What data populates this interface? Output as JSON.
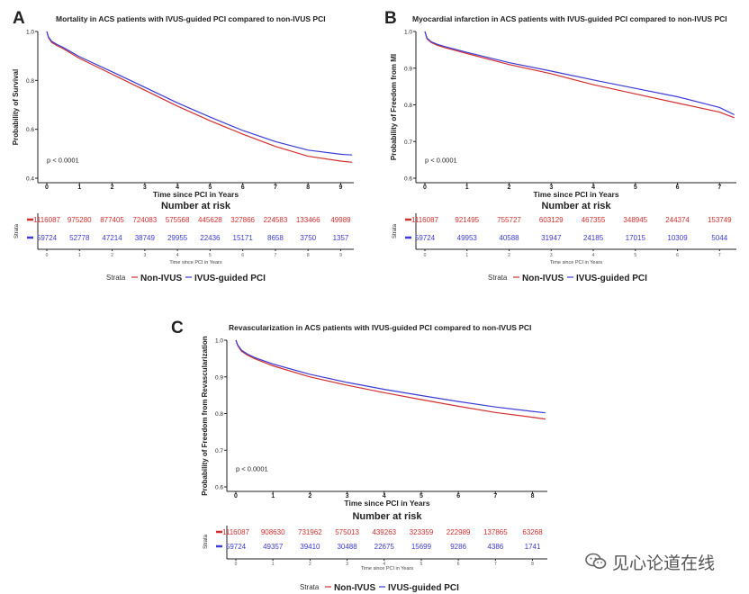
{
  "colors": {
    "non_ivus": "#d32f2f",
    "ivus": "#3b3bd6",
    "axis": "#222222"
  },
  "watermark": {
    "text": "见心论道在线",
    "icon": "wechat-icon"
  },
  "chart_data": [
    {
      "label": "A",
      "type": "line",
      "title": "Mortality in ACS patients with IVUS-guided PCI compared to non-IVUS PCI",
      "xlabel": "Time since PCI in Years",
      "ylabel": "Probability of Survival",
      "xlim": [
        0,
        9.4
      ],
      "ylim": [
        0.4,
        1.0
      ],
      "xticks": [
        0,
        1,
        2,
        3,
        4,
        5,
        6,
        7,
        8,
        9
      ],
      "yticks": [
        0.4,
        0.6,
        0.8,
        1.0
      ],
      "ytick_labels": [
        "0.4",
        "0.6",
        "0.8",
        "1.0"
      ],
      "pvalue": "p < 0.0001",
      "series": [
        {
          "name": "Non-IVUS",
          "x": [
            0,
            0.05,
            0.15,
            0.3,
            0.5,
            1,
            2,
            3,
            4,
            5,
            6,
            7,
            8,
            9,
            9.35
          ],
          "values": [
            1.0,
            0.975,
            0.955,
            0.943,
            0.93,
            0.89,
            0.825,
            0.76,
            0.695,
            0.635,
            0.58,
            0.53,
            0.49,
            0.47,
            0.465
          ]
        },
        {
          "name": "IVUS-guided PCI",
          "x": [
            0,
            0.05,
            0.15,
            0.3,
            0.5,
            1,
            2,
            3,
            4,
            5,
            6,
            7,
            8,
            9,
            9.35
          ],
          "values": [
            1.0,
            0.978,
            0.96,
            0.948,
            0.935,
            0.897,
            0.835,
            0.772,
            0.708,
            0.65,
            0.595,
            0.55,
            0.515,
            0.498,
            0.495
          ]
        }
      ],
      "risk_table": {
        "title": "Number at risk",
        "strata_label": "Strata",
        "xlabel": "Time since PCI in Years",
        "xticks": [
          0,
          1,
          2,
          3,
          4,
          5,
          6,
          7,
          8,
          9
        ],
        "rows": [
          {
            "name": "Non-IVUS",
            "values": [
              "1116087",
              "975280",
              "877405",
              "724083",
              "575568",
              "445628",
              "327866",
              "224583",
              "133466",
              "49989"
            ]
          },
          {
            "name": "IVUS-guided PCI",
            "values": [
              "59724",
              "52778",
              "47214",
              "38749",
              "29955",
              "22436",
              "15171",
              "8658",
              "3750",
              "1357"
            ]
          }
        ]
      },
      "legend": {
        "strata_label": "Strata",
        "entries": [
          "Non-IVUS",
          "IVUS-guided PCI"
        ],
        "position": "bottom"
      }
    },
    {
      "label": "B",
      "type": "line",
      "title": "Myocardial infarction in ACS patients with IVUS-guided PCI compared to non-IVUS PCI",
      "xlabel": "Time since PCI in Years",
      "ylabel": "Probability of Freedom from MI",
      "xlim": [
        0,
        7.4
      ],
      "ylim": [
        0.6,
        1.0
      ],
      "xticks": [
        0,
        1,
        2,
        3,
        4,
        5,
        6,
        7
      ],
      "yticks": [
        0.6,
        0.7,
        0.8,
        0.9,
        1.0
      ],
      "ytick_labels": [
        "0.6",
        "0.7",
        "0.8",
        "0.9",
        "1.0"
      ],
      "pvalue": "p < 0.0001",
      "series": [
        {
          "name": "Non-IVUS",
          "x": [
            0,
            0.05,
            0.15,
            0.3,
            0.5,
            1,
            2,
            3,
            4,
            5,
            6,
            7,
            7.35
          ],
          "values": [
            1.0,
            0.98,
            0.97,
            0.962,
            0.955,
            0.94,
            0.91,
            0.885,
            0.855,
            0.83,
            0.805,
            0.78,
            0.765
          ]
        },
        {
          "name": "IVUS-guided PCI",
          "x": [
            0,
            0.05,
            0.15,
            0.3,
            0.5,
            1,
            2,
            3,
            4,
            5,
            6,
            7,
            7.35
          ],
          "values": [
            1.0,
            0.982,
            0.972,
            0.965,
            0.958,
            0.943,
            0.915,
            0.892,
            0.868,
            0.845,
            0.822,
            0.793,
            0.773
          ]
        }
      ],
      "risk_table": {
        "title": "Number at risk",
        "strata_label": "Strata",
        "xlabel": "Time since PCI in Years",
        "xticks": [
          0,
          1,
          2,
          3,
          4,
          5,
          6,
          7
        ],
        "rows": [
          {
            "name": "Non-IVUS",
            "values": [
              "1116087",
              "921495",
              "755727",
              "603129",
              "467355",
              "348945",
              "244374",
              "153749"
            ]
          },
          {
            "name": "IVUS-guided PCI",
            "values": [
              "59724",
              "49953",
              "40588",
              "31947",
              "24185",
              "17015",
              "10309",
              "5044"
            ]
          }
        ]
      },
      "legend": {
        "strata_label": "Strata",
        "entries": [
          "Non-IVUS",
          "IVUS-guided PCI"
        ],
        "position": "bottom"
      }
    },
    {
      "label": "C",
      "type": "line",
      "title": "Revascularization in ACS patients with IVUS-guided PCI compared to non-IVUS PCI",
      "xlabel": "Time since PCI in Years",
      "ylabel": "Probability of Freedom from Revascularization",
      "xlim": [
        0,
        8.4
      ],
      "ylim": [
        0.6,
        1.0
      ],
      "xticks": [
        0,
        1,
        2,
        3,
        4,
        5,
        6,
        7,
        8
      ],
      "yticks": [
        0.6,
        0.7,
        0.8,
        0.9,
        1.0
      ],
      "ytick_labels": [
        "0.6",
        "0.7",
        "0.8",
        "0.9",
        "1.0"
      ],
      "pvalue": "p < 0.0001",
      "series": [
        {
          "name": "Non-IVUS",
          "x": [
            0,
            0.05,
            0.15,
            0.3,
            0.5,
            1,
            2,
            3,
            4,
            5,
            6,
            7,
            8,
            8.35
          ],
          "values": [
            1.0,
            0.985,
            0.97,
            0.96,
            0.95,
            0.93,
            0.9,
            0.877,
            0.857,
            0.838,
            0.82,
            0.803,
            0.79,
            0.785
          ]
        },
        {
          "name": "IVUS-guided PCI",
          "x": [
            0,
            0.05,
            0.15,
            0.3,
            0.5,
            1,
            2,
            3,
            4,
            5,
            6,
            7,
            8,
            8.35
          ],
          "values": [
            1.0,
            0.987,
            0.973,
            0.963,
            0.953,
            0.935,
            0.907,
            0.885,
            0.866,
            0.849,
            0.833,
            0.818,
            0.806,
            0.802
          ]
        }
      ],
      "risk_table": {
        "title": "Number at risk",
        "strata_label": "Strata",
        "xlabel": "Time since PCI in Years",
        "xticks": [
          0,
          1,
          2,
          3,
          4,
          5,
          6,
          7,
          8
        ],
        "rows": [
          {
            "name": "Non-IVUS",
            "values": [
              "1116087",
              "908630",
              "731962",
              "575013",
              "439263",
              "323359",
              "222989",
              "137865",
              "63268"
            ]
          },
          {
            "name": "IVUS-guided PCI",
            "values": [
              "59724",
              "49357",
              "39410",
              "30488",
              "22675",
              "15699",
              "9286",
              "4386",
              "1741"
            ]
          }
        ]
      },
      "legend": {
        "strata_label": "Strata",
        "entries": [
          "Non-IVUS",
          "IVUS-guided PCI"
        ],
        "position": "bottom"
      }
    }
  ]
}
